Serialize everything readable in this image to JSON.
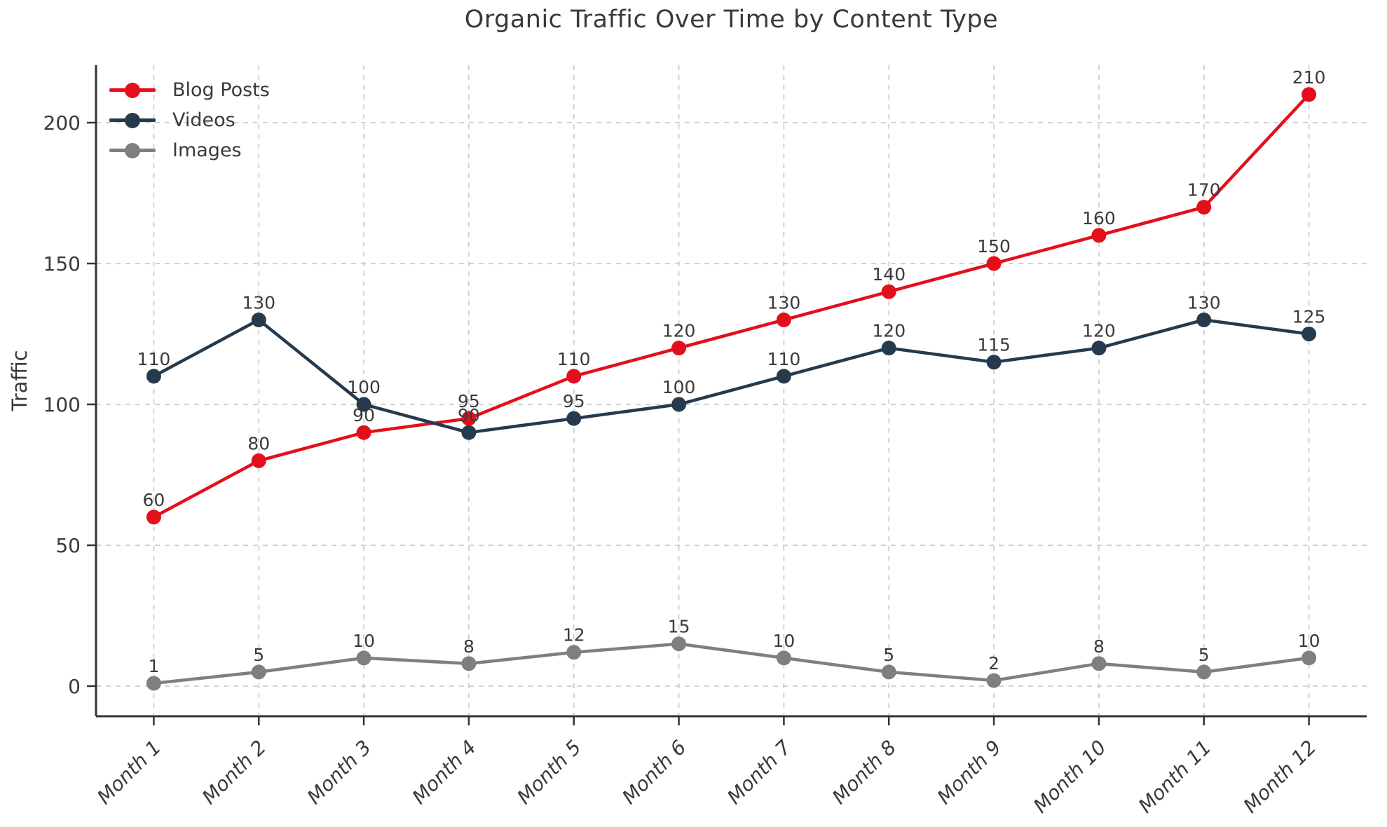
{
  "chart_data": {
    "type": "line",
    "title": "Organic Traffic Over Time by Content Type",
    "xlabel": "",
    "ylabel": "Traffic",
    "categories": [
      "Month 1",
      "Month 2",
      "Month 3",
      "Month 4",
      "Month 5",
      "Month 6",
      "Month 7",
      "Month 8",
      "Month 9",
      "Month 10",
      "Month 11",
      "Month 12"
    ],
    "series": [
      {
        "name": "Blog Posts",
        "color": "#e3101c",
        "values": [
          60,
          80,
          90,
          95,
          110,
          120,
          130,
          140,
          150,
          160,
          170,
          210
        ]
      },
      {
        "name": "Videos",
        "color": "#253a4d",
        "values": [
          110,
          130,
          100,
          90,
          95,
          100,
          110,
          120,
          115,
          120,
          130,
          125
        ]
      },
      {
        "name": "Images",
        "color": "#7f7f7f",
        "values": [
          1,
          5,
          10,
          8,
          12,
          15,
          10,
          5,
          2,
          8,
          5,
          10
        ]
      }
    ],
    "yticks": [
      0,
      50,
      100,
      150,
      200
    ],
    "ylim": [
      -11,
      220
    ],
    "grid": true,
    "grid_style": "dashed",
    "grid_color": "#cccccc",
    "axis_color": "#333333",
    "text_color": "#3a3a3a",
    "legend_position": "upper-left",
    "point_labels_visible": true
  }
}
